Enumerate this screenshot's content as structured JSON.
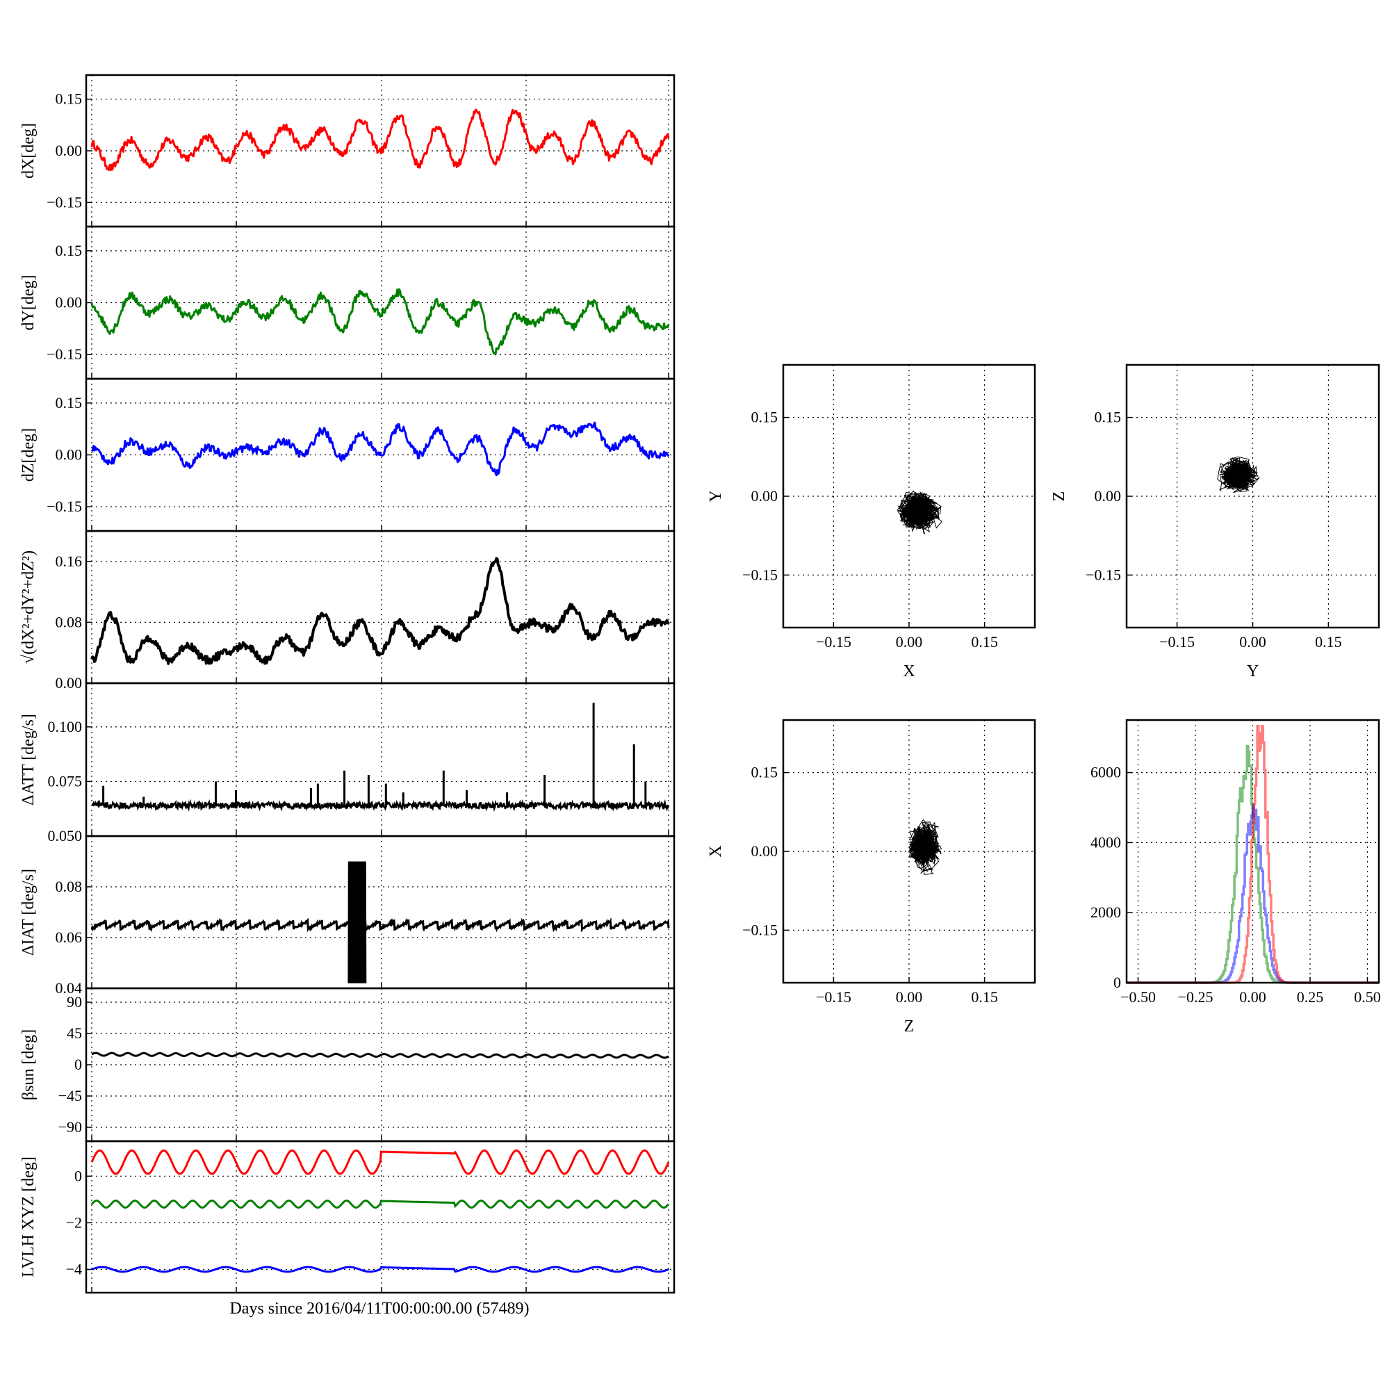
{
  "xlabel": "Days since 2016/04/11T00:00:00.00 (57489)",
  "colors": {
    "red": "#ff0000",
    "green": "#008000",
    "blue": "#0000ff",
    "black": "#000000"
  },
  "chart_data": [
    {
      "type": "line",
      "name": "dX",
      "ylabel": "dX[deg]",
      "ylim": [
        -0.22,
        0.22
      ],
      "yticks": [
        -0.15,
        0.0,
        0.15
      ],
      "ytick_labels": [
        "−0.15",
        "0.00",
        "0.15"
      ],
      "series": [
        {
          "color": "red",
          "values": [
            0.02,
            -0.05,
            0.03,
            -0.04,
            0.03,
            -0.02,
            0.04,
            -0.03,
            0.05,
            -0.01,
            0.07,
            0.01,
            0.06,
            -0.01,
            0.09,
            0.0,
            0.1,
            -0.04,
            0.07,
            -0.04,
            0.11,
            -0.03,
            0.12,
            0.0,
            0.05,
            -0.03,
            0.08,
            -0.02,
            0.05,
            -0.03,
            0.04
          ]
        }
      ]
    },
    {
      "type": "line",
      "name": "dY",
      "ylabel": "dY[deg]",
      "ylim": [
        -0.22,
        0.22
      ],
      "yticks": [
        -0.15,
        0.0,
        0.15
      ],
      "ytick_labels": [
        "−0.15",
        "0.00",
        "0.15"
      ],
      "series": [
        {
          "color": "green",
          "values": [
            -0.01,
            -0.08,
            0.02,
            -0.03,
            0.01,
            -0.04,
            -0.01,
            -0.05,
            0.0,
            -0.04,
            0.01,
            -0.05,
            0.02,
            -0.08,
            0.03,
            -0.03,
            0.03,
            -0.09,
            0.0,
            -0.06,
            0.0,
            -0.14,
            -0.04,
            -0.06,
            -0.02,
            -0.07,
            0.0,
            -0.08,
            -0.02,
            -0.07,
            -0.07
          ]
        }
      ]
    },
    {
      "type": "line",
      "name": "dZ",
      "ylabel": "dZ[deg]",
      "ylim": [
        -0.22,
        0.22
      ],
      "yticks": [
        -0.15,
        0.0,
        0.15
      ],
      "ytick_labels": [
        "−0.15",
        "0.00",
        "0.15"
      ],
      "series": [
        {
          "color": "blue",
          "values": [
            0.02,
            -0.02,
            0.04,
            0.01,
            0.03,
            -0.03,
            0.02,
            0.0,
            0.02,
            0.01,
            0.04,
            0.0,
            0.07,
            -0.01,
            0.06,
            0.0,
            0.08,
            0.0,
            0.07,
            -0.01,
            0.05,
            -0.05,
            0.07,
            0.02,
            0.08,
            0.06,
            0.09,
            0.02,
            0.05,
            0.0,
            0.0
          ]
        }
      ]
    },
    {
      "type": "line",
      "name": "norm",
      "ylabel": "√(dX²+dY²+dZ²)",
      "ylim": [
        0.0,
        0.2
      ],
      "yticks": [
        0.0,
        0.08,
        0.16
      ],
      "ytick_labels": [
        "0.00",
        "0.08",
        "0.16"
      ],
      "series": [
        {
          "color": "black",
          "values": [
            0.03,
            0.09,
            0.03,
            0.06,
            0.03,
            0.05,
            0.03,
            0.04,
            0.05,
            0.03,
            0.06,
            0.04,
            0.09,
            0.05,
            0.08,
            0.04,
            0.08,
            0.05,
            0.07,
            0.06,
            0.09,
            0.16,
            0.07,
            0.08,
            0.07,
            0.1,
            0.06,
            0.09,
            0.06,
            0.08,
            0.08
          ]
        }
      ]
    },
    {
      "type": "line",
      "name": "dATT",
      "ylabel": "ΔATT [deg/s]",
      "ylim": [
        0.05,
        0.12
      ],
      "yticks": [
        0.05,
        0.075,
        0.1
      ],
      "ytick_labels": [
        "0.050",
        "0.075",
        "0.100"
      ],
      "baseline": 0.064,
      "spikes": [
        [
          0.02,
          0.073
        ],
        [
          0.09,
          0.068
        ],
        [
          0.215,
          0.075
        ],
        [
          0.25,
          0.071
        ],
        [
          0.38,
          0.072
        ],
        [
          0.392,
          0.074
        ],
        [
          0.438,
          0.08
        ],
        [
          0.48,
          0.078
        ],
        [
          0.51,
          0.074
        ],
        [
          0.54,
          0.07
        ],
        [
          0.61,
          0.08
        ],
        [
          0.65,
          0.071
        ],
        [
          0.72,
          0.07
        ],
        [
          0.785,
          0.078
        ],
        [
          0.87,
          0.111
        ],
        [
          0.94,
          0.092
        ],
        [
          0.96,
          0.075
        ]
      ]
    },
    {
      "type": "line",
      "name": "dIAT",
      "ylabel": "ΔIAT [deg/s]",
      "ylim": [
        0.04,
        0.1
      ],
      "yticks": [
        0.04,
        0.06,
        0.08
      ],
      "ytick_labels": [
        "0.04",
        "0.06",
        "0.08"
      ],
      "baseline": 0.065,
      "teeth": 40,
      "burst_start": 0.445,
      "burst_end": 0.475,
      "burst_max": 0.09,
      "burst_min": 0.042
    },
    {
      "type": "line",
      "name": "beta",
      "ylabel": "βsun [deg]",
      "ylim": [
        -110,
        110
      ],
      "yticks": [
        -90,
        -45,
        0,
        45,
        90
      ],
      "ytick_labels": [
        "−90",
        "−45",
        "0",
        "45",
        "90"
      ],
      "series": [
        {
          "color": "black",
          "mean": 15,
          "amp": 2,
          "cycles": 36
        }
      ]
    },
    {
      "type": "line",
      "name": "LVLH",
      "ylabel": "LVLH XYZ [deg]",
      "ylim": [
        -5,
        1.5
      ],
      "yticks": [
        -4,
        -2,
        0
      ],
      "ytick_labels": [
        "−4",
        "−2",
        "0"
      ],
      "series": [
        {
          "color": "red",
          "mean": 0.6,
          "amp": 0.5,
          "cycles": 18
        },
        {
          "color": "green",
          "mean": -1.2,
          "amp": 0.15,
          "cycles": 30
        },
        {
          "color": "blue",
          "mean": -4.0,
          "amp": 0.1,
          "cycles": 14
        }
      ],
      "flat_start": 0.5,
      "flat_end": 0.63
    },
    {
      "type": "scatter",
      "name": "X-Y",
      "xlabel": "X",
      "ylabel": "Y",
      "xlim": [
        -0.25,
        0.25
      ],
      "ylim": [
        -0.25,
        0.25
      ],
      "ticks": [
        -0.15,
        0.0,
        0.15
      ],
      "tick_labels": [
        "−0.15",
        "0.00",
        "0.15"
      ],
      "cluster": {
        "cx": 0.02,
        "cy": -0.03,
        "rx": 0.07,
        "ry": 0.06
      }
    },
    {
      "type": "scatter",
      "name": "Y-Z",
      "xlabel": "Y",
      "ylabel": "Z",
      "xlim": [
        -0.25,
        0.25
      ],
      "ylim": [
        -0.25,
        0.25
      ],
      "ticks": [
        -0.15,
        0.0,
        0.15
      ],
      "tick_labels": [
        "−0.15",
        "0.00",
        "0.15"
      ],
      "cluster": {
        "cx": -0.03,
        "cy": 0.04,
        "rx": 0.06,
        "ry": 0.05
      }
    },
    {
      "type": "scatter",
      "name": "Z-X",
      "xlabel": "Z",
      "ylabel": "X",
      "xlim": [
        -0.25,
        0.25
      ],
      "ylim": [
        -0.25,
        0.25
      ],
      "ticks": [
        -0.15,
        0.0,
        0.15
      ],
      "tick_labels": [
        "−0.15",
        "0.00",
        "0.15"
      ],
      "cluster": {
        "cx": 0.03,
        "cy": 0.01,
        "rx": 0.05,
        "ry": 0.07
      }
    },
    {
      "type": "histogram",
      "name": "hist",
      "xlim": [
        -0.55,
        0.55
      ],
      "ylim": [
        0,
        7500
      ],
      "xticks": [
        -0.5,
        -0.25,
        0.0,
        0.25,
        0.5
      ],
      "xtick_labels": [
        "−0.50",
        "−0.25",
        "0.00",
        "0.25",
        "0.50"
      ],
      "yticks": [
        0,
        2000,
        4000,
        6000
      ],
      "ytick_labels": [
        "0",
        "2000",
        "4000",
        "6000"
      ],
      "series": [
        {
          "color": "green",
          "mean": -0.03,
          "sigma": 0.04,
          "peak": 6500
        },
        {
          "color": "blue",
          "mean": 0.0,
          "sigma": 0.04,
          "peak": 5000
        },
        {
          "color": "red",
          "mean": 0.03,
          "sigma": 0.03,
          "peak": 7400
        }
      ]
    }
  ]
}
